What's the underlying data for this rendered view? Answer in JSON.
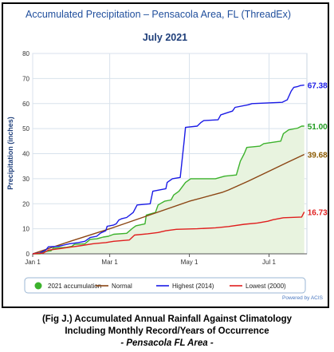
{
  "chart_data": {
    "type": "line",
    "title": "Accumulated Precipitation – Pensacola Area, FL (ThreadEx)",
    "subtitle": "July 2021",
    "ylabel": "Precipitation (inches)",
    "xlabel": "",
    "x_domain_days": [
      0,
      210
    ],
    "ylim": [
      0,
      80
    ],
    "y_ticks": [
      "0",
      "10",
      "20",
      "30",
      "40",
      "50",
      "60",
      "70",
      "80"
    ],
    "x_ticks": [
      {
        "day": 0,
        "label": "Jan 1"
      },
      {
        "day": 59,
        "label": "Mar 1"
      },
      {
        "day": 120,
        "label": "May 1"
      },
      {
        "day": 181,
        "label": "Jul 1"
      }
    ],
    "grid": true,
    "legend_position": "bottom",
    "credit": "Powered by ACIS",
    "series": [
      {
        "name": "2021 accumulation",
        "color": "#3cb22c",
        "end_label": "51.00\"",
        "label_color": "#1f9b1f",
        "fill": "#e8f3df",
        "points": [
          [
            0,
            0
          ],
          [
            6,
            0
          ],
          [
            8,
            0.8
          ],
          [
            14,
            1.2
          ],
          [
            16,
            2.3
          ],
          [
            26,
            2.6
          ],
          [
            30,
            3.0
          ],
          [
            32,
            3.8
          ],
          [
            40,
            4.0
          ],
          [
            44,
            5.8
          ],
          [
            49,
            6.0
          ],
          [
            54,
            6.7
          ],
          [
            58,
            7.0
          ],
          [
            62,
            7.8
          ],
          [
            72,
            8.2
          ],
          [
            76,
            10.0
          ],
          [
            79,
            11.2
          ],
          [
            86,
            12.0
          ],
          [
            87,
            15.5
          ],
          [
            94,
            16.5
          ],
          [
            96,
            19.5
          ],
          [
            101,
            21.0
          ],
          [
            106,
            21.5
          ],
          [
            108,
            23.5
          ],
          [
            112,
            25.0
          ],
          [
            117,
            28.5
          ],
          [
            121,
            30.0
          ],
          [
            140,
            30.0
          ],
          [
            147,
            31.0
          ],
          [
            156,
            31.5
          ],
          [
            159,
            37.0
          ],
          [
            162,
            40.0
          ],
          [
            164,
            42.5
          ],
          [
            174,
            43.0
          ],
          [
            177,
            44.0
          ],
          [
            190,
            45.0
          ],
          [
            192,
            48.0
          ],
          [
            196,
            49.5
          ],
          [
            203,
            50.2
          ],
          [
            206,
            51.0
          ],
          [
            208,
            51.0
          ]
        ]
      },
      {
        "name": "Normal",
        "color": "#8b4513",
        "end_label": "39.68\"",
        "label_color": "#8b5a00",
        "points": [
          [
            0,
            0
          ],
          [
            30,
            5.2
          ],
          [
            59,
            10.0
          ],
          [
            90,
            15.6
          ],
          [
            120,
            21.0
          ],
          [
            145,
            24.5
          ],
          [
            150,
            25.5
          ],
          [
            165,
            29.0
          ],
          [
            181,
            33.0
          ],
          [
            195,
            36.5
          ],
          [
            208,
            39.68
          ]
        ]
      },
      {
        "name": "Highest (2014)",
        "color": "#1a1ae6",
        "end_label": "67.38\"",
        "label_color": "#1a1ae6",
        "points": [
          [
            0,
            0
          ],
          [
            5,
            0.3
          ],
          [
            10,
            1.5
          ],
          [
            12,
            2.8
          ],
          [
            20,
            3.0
          ],
          [
            24,
            3.5
          ],
          [
            28,
            4.0
          ],
          [
            35,
            4.5
          ],
          [
            40,
            5.0
          ],
          [
            44,
            6.5
          ],
          [
            49,
            7.0
          ],
          [
            52,
            8.3
          ],
          [
            56,
            9.2
          ],
          [
            57,
            11.0
          ],
          [
            62,
            11.5
          ],
          [
            64,
            12.0
          ],
          [
            66,
            13.5
          ],
          [
            68,
            14.0
          ],
          [
            72,
            14.5
          ],
          [
            77,
            16.5
          ],
          [
            80,
            19.5
          ],
          [
            90,
            20.0
          ],
          [
            92,
            25.0
          ],
          [
            102,
            26.0
          ],
          [
            103,
            28.5
          ],
          [
            107,
            30.0
          ],
          [
            113,
            30.5
          ],
          [
            116,
            45.0
          ],
          [
            117,
            50.5
          ],
          [
            126,
            51.0
          ],
          [
            129,
            52.5
          ],
          [
            131,
            53.2
          ],
          [
            142,
            53.5
          ],
          [
            144,
            55.5
          ],
          [
            150,
            56.5
          ],
          [
            153,
            57.0
          ],
          [
            155,
            58.5
          ],
          [
            165,
            59.5
          ],
          [
            168,
            60.0
          ],
          [
            191,
            60.5
          ],
          [
            195,
            61.5
          ],
          [
            198,
            65.0
          ],
          [
            200,
            66.5
          ],
          [
            203,
            66.8
          ],
          [
            205,
            67.2
          ],
          [
            208,
            67.38
          ]
        ]
      },
      {
        "name": "Lowest (2000)",
        "color": "#e01e1e",
        "end_label": "16.73\"",
        "label_color": "#e01e1e",
        "points": [
          [
            0,
            0
          ],
          [
            8,
            0.3
          ],
          [
            12,
            1.5
          ],
          [
            20,
            2.0
          ],
          [
            28,
            2.6
          ],
          [
            36,
            3.2
          ],
          [
            46,
            4.0
          ],
          [
            56,
            4.5
          ],
          [
            62,
            5.0
          ],
          [
            74,
            5.5
          ],
          [
            78,
            7.5
          ],
          [
            88,
            8.0
          ],
          [
            96,
            8.5
          ],
          [
            102,
            9.2
          ],
          [
            110,
            9.8
          ],
          [
            126,
            10.0
          ],
          [
            140,
            10.4
          ],
          [
            150,
            10.9
          ],
          [
            162,
            11.8
          ],
          [
            172,
            12.3
          ],
          [
            180,
            13.0
          ],
          [
            184,
            13.6
          ],
          [
            192,
            14.4
          ],
          [
            206,
            14.7
          ],
          [
            208,
            16.73
          ]
        ]
      }
    ]
  },
  "caption": {
    "line1": "(Fig J.) Accumulated Annual Rainfall Against  Climatology",
    "line2": "Including Monthly Record/Years of Occurrence",
    "line3": "- Pensacola FL Area -"
  }
}
